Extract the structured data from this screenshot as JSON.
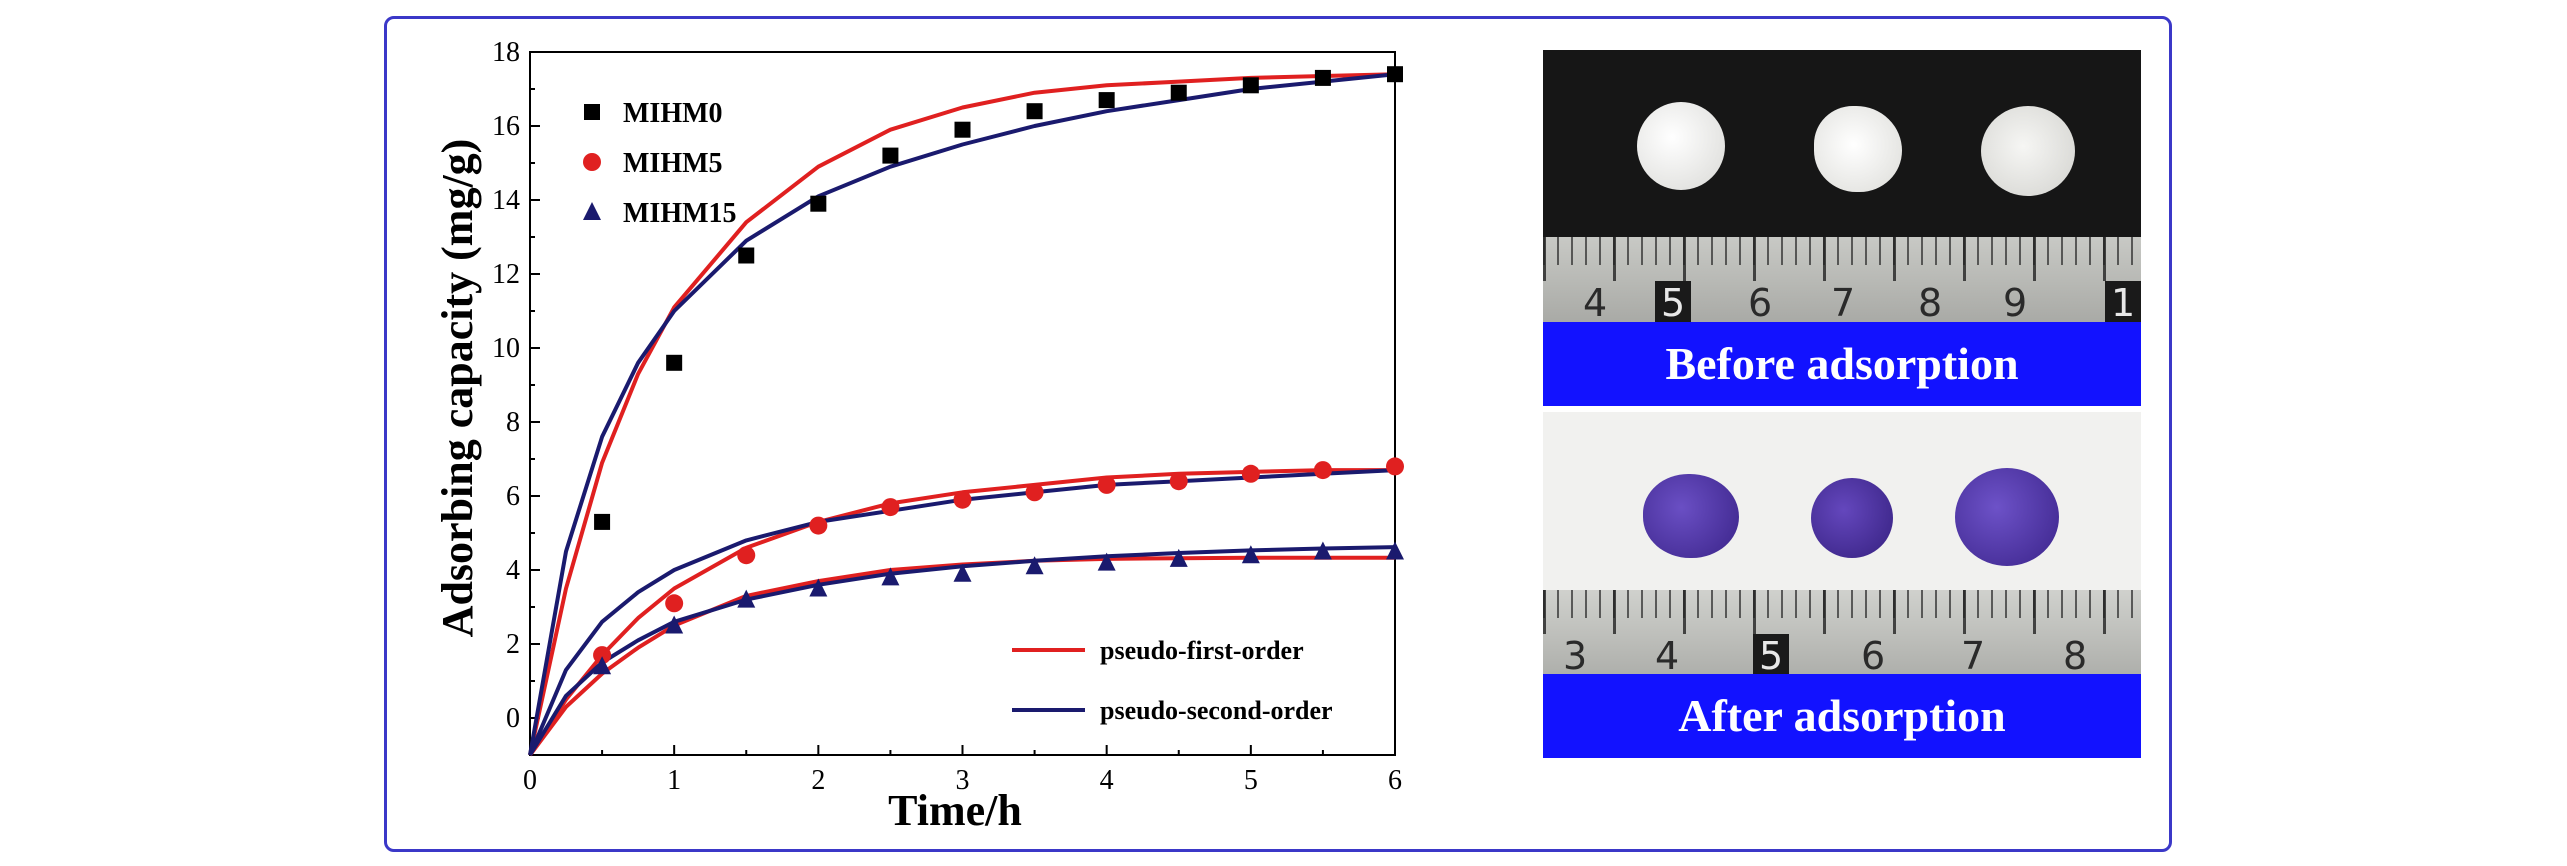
{
  "chart_data": {
    "type": "scatter",
    "xlabel": "Time/h",
    "ylabel": "Adsorbing capacity (mg/g)",
    "xlim": [
      0,
      6
    ],
    "ylim": [
      -1,
      18
    ],
    "xticks": [
      "0",
      "1",
      "2",
      "3",
      "4",
      "5",
      "6"
    ],
    "yticks": [
      "0",
      "2",
      "4",
      "6",
      "8",
      "10",
      "12",
      "14",
      "16",
      "18"
    ],
    "series": [
      {
        "name": "MIHM0",
        "marker": "square",
        "color": "#000000",
        "x": [
          0.5,
          1,
          1.5,
          2,
          2.5,
          3,
          3.5,
          4,
          4.5,
          5,
          5.5,
          6
        ],
        "y": [
          5.3,
          9.6,
          12.5,
          13.9,
          15.2,
          15.9,
          16.4,
          16.7,
          16.9,
          17.1,
          17.3,
          17.4
        ]
      },
      {
        "name": "MIHM5",
        "marker": "circle",
        "color": "#e02020",
        "x": [
          0.5,
          1,
          1.5,
          2,
          2.5,
          3,
          3.5,
          4,
          4.5,
          5,
          5.5,
          6
        ],
        "y": [
          1.7,
          3.1,
          4.4,
          5.2,
          5.7,
          5.9,
          6.1,
          6.3,
          6.4,
          6.6,
          6.7,
          6.8
        ]
      },
      {
        "name": "MIHM15",
        "marker": "triangle",
        "color": "#1a1a6e",
        "x": [
          0.5,
          1,
          1.5,
          2,
          2.5,
          3,
          3.5,
          4,
          4.5,
          5,
          5.5,
          6
        ],
        "y": [
          1.4,
          2.5,
          3.2,
          3.5,
          3.8,
          3.9,
          4.1,
          4.2,
          4.3,
          4.4,
          4.5,
          4.5
        ]
      }
    ],
    "fits": [
      {
        "model": "pseudo-first-order",
        "color": "#e02020",
        "curves": [
          {
            "x": [
              0,
              0.25,
              0.5,
              0.75,
              1,
              1.5,
              2,
              2.5,
              3,
              3.5,
              4,
              4.5,
              5,
              5.5,
              6
            ],
            "y": [
              -1,
              3.5,
              6.9,
              9.3,
              11.1,
              13.4,
              14.9,
              15.9,
              16.5,
              16.9,
              17.1,
              17.2,
              17.3,
              17.35,
              17.4
            ]
          },
          {
            "x": [
              0,
              0.25,
              0.5,
              0.75,
              1,
              1.5,
              2,
              2.5,
              3,
              3.5,
              4,
              4.5,
              5,
              5.5,
              6
            ],
            "y": [
              -1,
              0.5,
              1.7,
              2.7,
              3.5,
              4.6,
              5.3,
              5.8,
              6.1,
              6.3,
              6.5,
              6.6,
              6.65,
              6.7,
              6.7
            ]
          },
          {
            "x": [
              0,
              0.25,
              0.5,
              0.75,
              1,
              1.5,
              2,
              2.5,
              3,
              3.5,
              4,
              4.5,
              5,
              5.5,
              6
            ],
            "y": [
              -1,
              0.3,
              1.2,
              1.9,
              2.5,
              3.3,
              3.7,
              4.0,
              4.15,
              4.25,
              4.3,
              4.32,
              4.33,
              4.33,
              4.33
            ]
          }
        ]
      },
      {
        "model": "pseudo-second-order",
        "color": "#1a1a6e",
        "curves": [
          {
            "x": [
              0,
              0.25,
              0.5,
              0.75,
              1,
              1.5,
              2,
              2.5,
              3,
              3.5,
              4,
              4.5,
              5,
              5.5,
              6
            ],
            "y": [
              -1,
              4.5,
              7.6,
              9.6,
              11.0,
              12.9,
              14.1,
              14.9,
              15.5,
              16.0,
              16.4,
              16.7,
              17.0,
              17.2,
              17.4
            ]
          },
          {
            "x": [
              0,
              0.25,
              0.5,
              0.75,
              1,
              1.5,
              2,
              2.5,
              3,
              3.5,
              4,
              4.5,
              5,
              5.5,
              6
            ],
            "y": [
              -1,
              1.3,
              2.6,
              3.4,
              4.0,
              4.8,
              5.3,
              5.6,
              5.9,
              6.1,
              6.3,
              6.4,
              6.5,
              6.6,
              6.7
            ]
          },
          {
            "x": [
              0,
              0.25,
              0.5,
              0.75,
              1,
              1.5,
              2,
              2.5,
              3,
              3.5,
              4,
              4.5,
              5,
              5.5,
              6
            ],
            "y": [
              -1,
              0.6,
              1.5,
              2.1,
              2.6,
              3.2,
              3.6,
              3.9,
              4.1,
              4.25,
              4.37,
              4.46,
              4.53,
              4.58,
              4.62
            ]
          }
        ]
      }
    ],
    "legend_position": "top-left",
    "fit_legend_position": "bottom-right"
  },
  "photos": {
    "before_label": "Before adsorption",
    "after_label": "After adsorption",
    "before_ruler": [
      "4",
      "5",
      "6",
      "7",
      "8",
      "9",
      "1"
    ],
    "after_ruler": [
      "3",
      "4",
      "5",
      "6",
      "7",
      "8"
    ],
    "before_disc_color": "#f0f0ee",
    "after_disc_color": "#4a2ea0"
  }
}
